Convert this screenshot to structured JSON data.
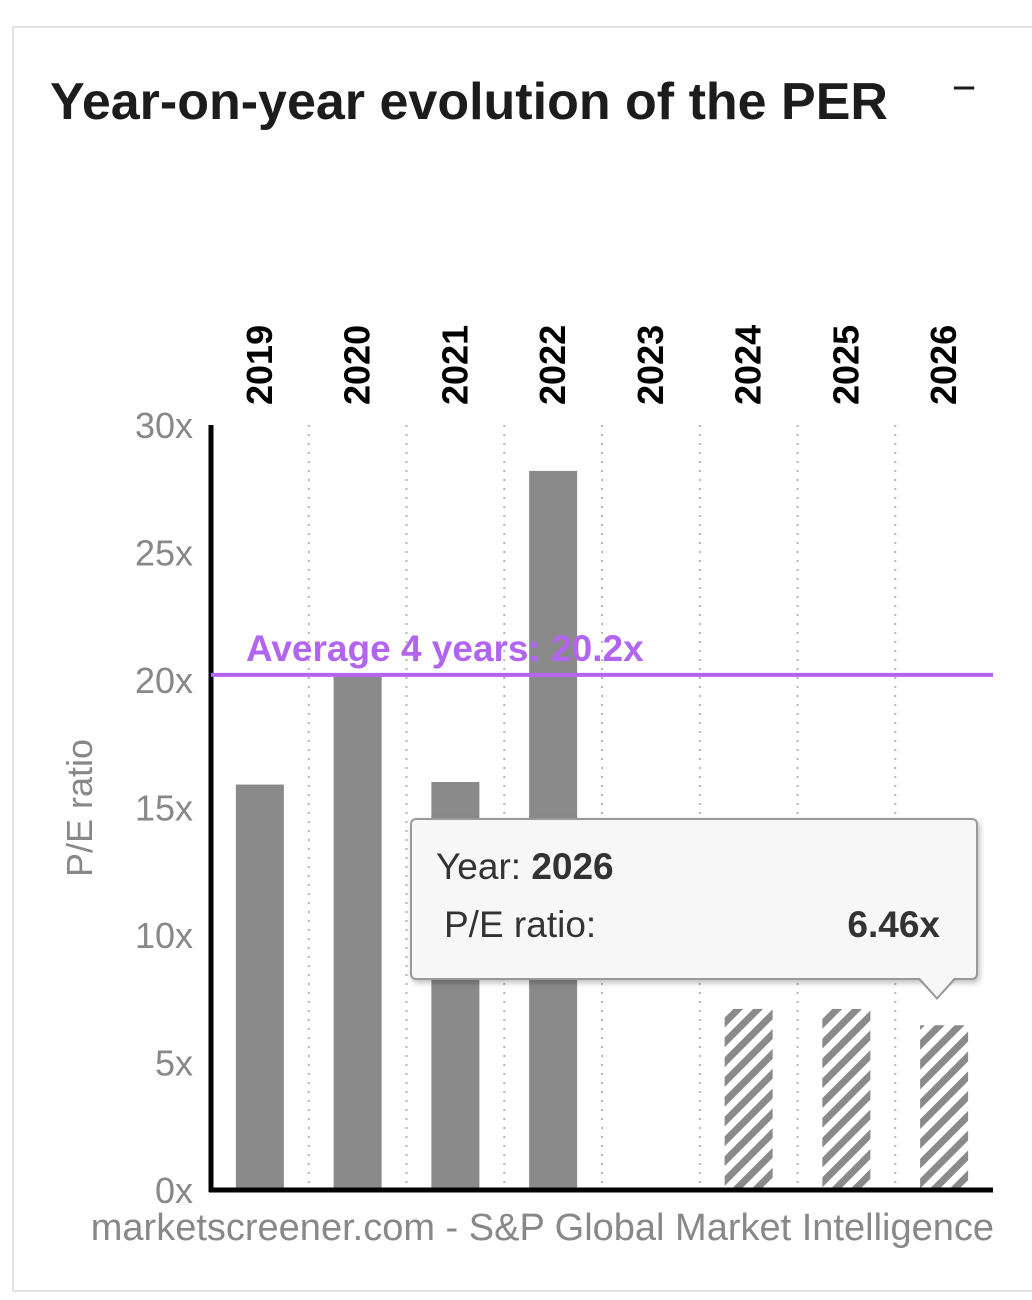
{
  "widget": {
    "title": "Year-on-year evolution of the PER",
    "collapse_label": "−"
  },
  "chart_data": {
    "type": "bar",
    "categories": [
      "2019",
      "2020",
      "2021",
      "2022",
      "2023",
      "2024",
      "2025",
      "2026"
    ],
    "values": [
      15.9,
      20.2,
      16.0,
      28.2,
      null,
      7.1,
      7.1,
      6.46
    ],
    "estimated": [
      false,
      false,
      false,
      false,
      false,
      true,
      true,
      true
    ],
    "ylabel": "P/E ratio",
    "ylim": [
      0,
      30
    ],
    "yticks": [
      0,
      5,
      10,
      15,
      20,
      25,
      30
    ],
    "ytick_labels": [
      "0x",
      "5x",
      "10x",
      "15x",
      "20x",
      "25x",
      "30x"
    ],
    "grid": "vertical dotted",
    "colors": {
      "bar": "#8a8a8a",
      "average": "#b265f0",
      "axis": "#000000",
      "text": "#888888"
    },
    "average": {
      "value": 20.2,
      "label": "Average 4 years: 20.2x"
    },
    "credits": "marketscreener.com - S&P Global Market Intelligence"
  },
  "tooltip": {
    "year_label": "Year: ",
    "year_value": "2026",
    "metric_label": "P/E ratio:",
    "metric_value": "6.46x"
  }
}
